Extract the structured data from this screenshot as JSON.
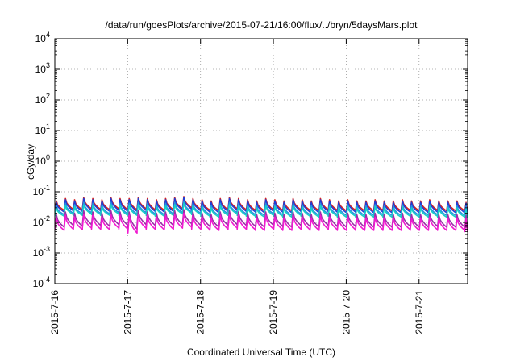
{
  "chart_data": {
    "type": "line",
    "title": "/data/run/goesPlots/archive/2015-07-21/16:00/flux/../bryn/5daysMars.plot",
    "xlabel": "Coordinated Universal Time (UTC)",
    "ylabel": "cGy/day",
    "y_scale": "log",
    "ylim": [
      0.0001,
      10000
    ],
    "y_ticks": [
      {
        "value": 0.0001,
        "base": "10",
        "exp": "-4"
      },
      {
        "value": 0.001,
        "base": "10",
        "exp": "-3"
      },
      {
        "value": 0.01,
        "base": "10",
        "exp": "-2"
      },
      {
        "value": 0.1,
        "base": "10",
        "exp": "-1"
      },
      {
        "value": 1,
        "base": "10",
        "exp": "0"
      },
      {
        "value": 10,
        "base": "10",
        "exp": "1"
      },
      {
        "value": 100,
        "base": "10",
        "exp": "2"
      },
      {
        "value": 1000,
        "base": "10",
        "exp": "3"
      },
      {
        "value": 10000,
        "base": "10",
        "exp": "4"
      }
    ],
    "xlim": [
      "2015-07-16 00:00",
      "2015-07-21 16:00"
    ],
    "x_ticks": [
      "2015-7-16",
      "2015-7-17",
      "2015-7-18",
      "2015-7-19",
      "2015-7-20",
      "2015-7-21"
    ],
    "x_tick_dates": [
      "2015-07-16",
      "2015-07-17",
      "2015-07-18",
      "2015-07-19",
      "2015-07-20",
      "2015-07-21"
    ],
    "grid": true,
    "legend": "none",
    "pattern": "sawtooth: sharp rise followed by gradual decay, roughly every 3 hours",
    "peak_times": [
      "2015-07-16 00:30",
      "2015-07-16 03:30",
      "2015-07-16 06:30",
      "2015-07-16 09:30",
      "2015-07-16 12:30",
      "2015-07-16 15:30",
      "2015-07-16 18:30",
      "2015-07-16 21:30",
      "2015-07-17 00:30",
      "2015-07-17 03:30",
      "2015-07-17 06:30",
      "2015-07-17 09:30",
      "2015-07-17 12:30",
      "2015-07-17 15:30",
      "2015-07-17 18:30",
      "2015-07-17 21:30",
      "2015-07-18 00:30",
      "2015-07-18 03:30",
      "2015-07-18 06:30",
      "2015-07-18 09:30",
      "2015-07-18 12:30",
      "2015-07-18 15:30",
      "2015-07-18 18:30",
      "2015-07-18 21:30",
      "2015-07-19 00:30",
      "2015-07-19 03:30",
      "2015-07-19 06:30",
      "2015-07-19 09:30",
      "2015-07-19 12:30",
      "2015-07-19 15:30",
      "2015-07-19 18:30",
      "2015-07-19 21:30",
      "2015-07-20 00:30",
      "2015-07-20 03:30",
      "2015-07-20 06:30",
      "2015-07-20 09:30",
      "2015-07-20 12:30",
      "2015-07-20 15:30",
      "2015-07-20 18:30",
      "2015-07-20 21:30",
      "2015-07-21 00:30",
      "2015-07-21 03:30",
      "2015-07-21 06:30",
      "2015-07-21 09:30",
      "2015-07-21 12:30",
      "2015-07-21 15:30"
    ],
    "series": [
      {
        "color": "#d62020",
        "peak_values": [
          0.05,
          0.06,
          0.055,
          0.065,
          0.06,
          0.055,
          0.065,
          0.06,
          0.06,
          0.065,
          0.06,
          0.055,
          0.06,
          0.065,
          0.07,
          0.06,
          0.055,
          0.05,
          0.06,
          0.065,
          0.06,
          0.055,
          0.05,
          0.06,
          0.055,
          0.05,
          0.06,
          0.055,
          0.05,
          0.06,
          0.055,
          0.05,
          0.055,
          0.05,
          0.05,
          0.055,
          0.05,
          0.05,
          0.055,
          0.05,
          0.05,
          0.055,
          0.05,
          0.05,
          0.05,
          0.045
        ],
        "trough_values": [
          0.025,
          0.027,
          0.026,
          0.028,
          0.027,
          0.026,
          0.028,
          0.026,
          0.026,
          0.028,
          0.026,
          0.025,
          0.026,
          0.028,
          0.03,
          0.027,
          0.025,
          0.024,
          0.026,
          0.028,
          0.026,
          0.025,
          0.024,
          0.026,
          0.025,
          0.024,
          0.026,
          0.025,
          0.024,
          0.026,
          0.025,
          0.024,
          0.025,
          0.024,
          0.024,
          0.025,
          0.024,
          0.024,
          0.025,
          0.024,
          0.024,
          0.025,
          0.024,
          0.024,
          0.024,
          0.023
        ]
      },
      {
        "color": "#1f3fd6",
        "peak_values": [
          0.045,
          0.055,
          0.05,
          0.06,
          0.055,
          0.05,
          0.06,
          0.055,
          0.055,
          0.06,
          0.055,
          0.05,
          0.055,
          0.06,
          0.065,
          0.055,
          0.05,
          0.045,
          0.055,
          0.06,
          0.055,
          0.05,
          0.045,
          0.055,
          0.05,
          0.045,
          0.055,
          0.05,
          0.045,
          0.055,
          0.05,
          0.045,
          0.05,
          0.045,
          0.045,
          0.05,
          0.045,
          0.045,
          0.05,
          0.045,
          0.045,
          0.05,
          0.045,
          0.045,
          0.045,
          0.042
        ],
        "trough_values": [
          0.022,
          0.024,
          0.023,
          0.025,
          0.024,
          0.023,
          0.025,
          0.023,
          0.023,
          0.025,
          0.023,
          0.022,
          0.023,
          0.025,
          0.027,
          0.024,
          0.022,
          0.021,
          0.023,
          0.025,
          0.023,
          0.022,
          0.021,
          0.023,
          0.022,
          0.021,
          0.023,
          0.022,
          0.021,
          0.023,
          0.022,
          0.021,
          0.022,
          0.021,
          0.021,
          0.022,
          0.021,
          0.021,
          0.022,
          0.021,
          0.021,
          0.022,
          0.021,
          0.021,
          0.021,
          0.02
        ]
      },
      {
        "color": "#2a8fe0",
        "peak_values": [
          0.035,
          0.042,
          0.038,
          0.045,
          0.042,
          0.038,
          0.045,
          0.042,
          0.042,
          0.045,
          0.042,
          0.038,
          0.042,
          0.045,
          0.05,
          0.042,
          0.038,
          0.035,
          0.042,
          0.045,
          0.042,
          0.038,
          0.035,
          0.042,
          0.038,
          0.035,
          0.042,
          0.038,
          0.035,
          0.042,
          0.038,
          0.035,
          0.038,
          0.035,
          0.035,
          0.038,
          0.035,
          0.035,
          0.038,
          0.035,
          0.035,
          0.038,
          0.035,
          0.035,
          0.035,
          0.033
        ],
        "trough_values": [
          0.018,
          0.02,
          0.019,
          0.021,
          0.02,
          0.019,
          0.021,
          0.019,
          0.019,
          0.021,
          0.019,
          0.018,
          0.019,
          0.021,
          0.022,
          0.02,
          0.018,
          0.017,
          0.019,
          0.021,
          0.019,
          0.018,
          0.017,
          0.019,
          0.018,
          0.017,
          0.019,
          0.018,
          0.017,
          0.019,
          0.018,
          0.017,
          0.018,
          0.017,
          0.017,
          0.018,
          0.017,
          0.017,
          0.018,
          0.017,
          0.017,
          0.018,
          0.017,
          0.017,
          0.017,
          0.016
        ]
      },
      {
        "color": "#16d0c8",
        "peak_values": [
          0.03,
          0.036,
          0.033,
          0.038,
          0.036,
          0.033,
          0.038,
          0.036,
          0.036,
          0.038,
          0.036,
          0.033,
          0.036,
          0.038,
          0.042,
          0.036,
          0.033,
          0.03,
          0.036,
          0.038,
          0.036,
          0.033,
          0.03,
          0.036,
          0.033,
          0.03,
          0.036,
          0.033,
          0.03,
          0.036,
          0.033,
          0.03,
          0.033,
          0.03,
          0.03,
          0.033,
          0.03,
          0.03,
          0.033,
          0.03,
          0.03,
          0.033,
          0.03,
          0.03,
          0.03,
          0.028
        ],
        "trough_values": [
          0.016,
          0.018,
          0.017,
          0.019,
          0.018,
          0.017,
          0.019,
          0.017,
          0.017,
          0.019,
          0.017,
          0.016,
          0.017,
          0.019,
          0.02,
          0.018,
          0.016,
          0.015,
          0.017,
          0.019,
          0.017,
          0.016,
          0.015,
          0.017,
          0.016,
          0.015,
          0.017,
          0.016,
          0.015,
          0.017,
          0.016,
          0.015,
          0.016,
          0.015,
          0.015,
          0.016,
          0.015,
          0.015,
          0.016,
          0.015,
          0.015,
          0.016,
          0.015,
          0.015,
          0.015,
          0.014
        ]
      },
      {
        "color": "#9a2fa8",
        "peak_values": [
          0.018,
          0.022,
          0.02,
          0.024,
          0.022,
          0.02,
          0.024,
          0.022,
          0.022,
          0.024,
          0.022,
          0.02,
          0.022,
          0.024,
          0.026,
          0.022,
          0.02,
          0.018,
          0.022,
          0.024,
          0.022,
          0.02,
          0.018,
          0.022,
          0.02,
          0.018,
          0.022,
          0.02,
          0.018,
          0.022,
          0.02,
          0.018,
          0.02,
          0.018,
          0.018,
          0.02,
          0.018,
          0.018,
          0.02,
          0.018,
          0.018,
          0.02,
          0.018,
          0.018,
          0.018,
          0.017
        ],
        "trough_values": [
          0.007,
          0.008,
          0.0075,
          0.0085,
          0.008,
          0.0075,
          0.0085,
          0.008,
          0.006,
          0.0085,
          0.008,
          0.0075,
          0.008,
          0.0085,
          0.009,
          0.008,
          0.0075,
          0.007,
          0.008,
          0.0085,
          0.008,
          0.0075,
          0.007,
          0.008,
          0.0075,
          0.007,
          0.008,
          0.0075,
          0.007,
          0.008,
          0.0075,
          0.007,
          0.0075,
          0.007,
          0.007,
          0.0075,
          0.007,
          0.007,
          0.0075,
          0.007,
          0.007,
          0.0075,
          0.007,
          0.007,
          0.007,
          0.0065
        ]
      },
      {
        "color": "#f01ad0",
        "peak_values": [
          0.014,
          0.017,
          0.015,
          0.018,
          0.017,
          0.015,
          0.018,
          0.017,
          0.017,
          0.018,
          0.017,
          0.015,
          0.017,
          0.018,
          0.02,
          0.017,
          0.015,
          0.014,
          0.017,
          0.018,
          0.017,
          0.015,
          0.014,
          0.017,
          0.015,
          0.014,
          0.017,
          0.015,
          0.014,
          0.017,
          0.015,
          0.014,
          0.015,
          0.014,
          0.014,
          0.015,
          0.014,
          0.014,
          0.015,
          0.014,
          0.014,
          0.015,
          0.014,
          0.014,
          0.014,
          0.013
        ],
        "trough_values": [
          0.0055,
          0.006,
          0.0058,
          0.0065,
          0.006,
          0.0058,
          0.0065,
          0.006,
          0.0045,
          0.0065,
          0.006,
          0.0058,
          0.006,
          0.0065,
          0.007,
          0.006,
          0.0058,
          0.0055,
          0.006,
          0.0065,
          0.006,
          0.0058,
          0.0055,
          0.006,
          0.0058,
          0.0055,
          0.006,
          0.0058,
          0.0055,
          0.006,
          0.0058,
          0.0055,
          0.0058,
          0.0055,
          0.0055,
          0.0058,
          0.0055,
          0.0055,
          0.0058,
          0.0055,
          0.0055,
          0.0058,
          0.0055,
          0.0055,
          0.0055,
          0.005
        ]
      }
    ]
  }
}
